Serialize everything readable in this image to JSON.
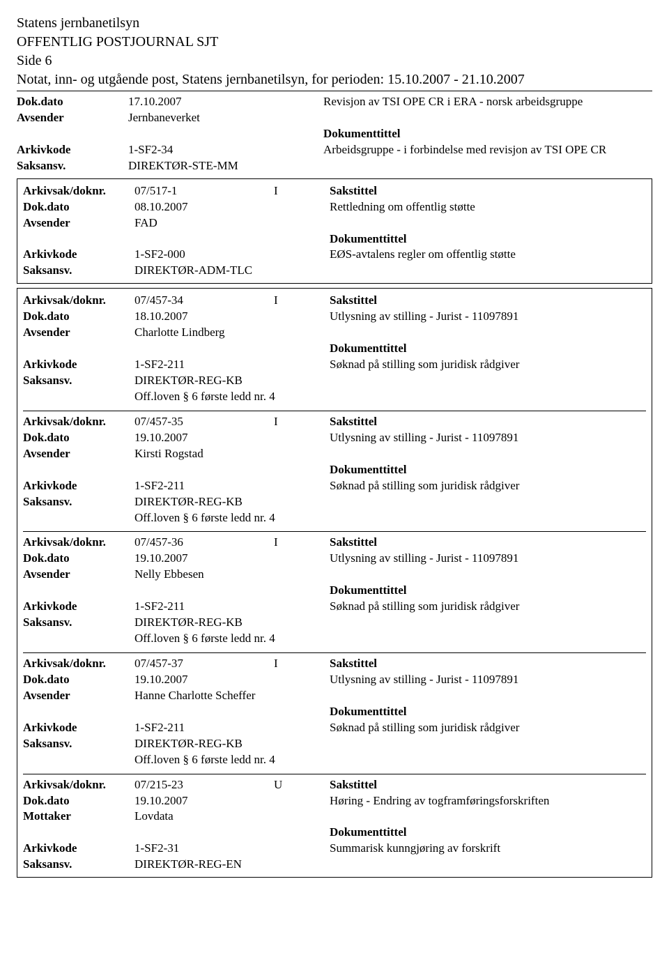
{
  "header": {
    "org": "Statens jernbanetilsyn",
    "title": "OFFENTLIG POSTJOURNAL SJT",
    "side": "Side 6",
    "notat": "Notat, inn- og utgående post, Statens jernbanetilsyn, for perioden: 15.10.2007 - 21.10.2007"
  },
  "labels": {
    "dokdato": "Dok.dato",
    "avsender": "Avsender",
    "mottaker": "Mottaker",
    "arkivkode": "Arkivkode",
    "saksansv": "Saksansv.",
    "arkivsak": "Arkivsak/doknr.",
    "sakstittel": "Sakstittel",
    "dokumenttittel": "Dokumenttittel"
  },
  "top_entry": {
    "dokdato": "17.10.2007",
    "avsender": "Jernbaneverket",
    "arkivkode": "1-SF2-34",
    "saksansv": "DIREKTØR-STE-MM",
    "revisjon": "Revisjon av TSI OPE CR i ERA - norsk arbeidsgruppe",
    "doktext": "Arbeidsgruppe - i forbindelse med revisjon av TSI OPE CR"
  },
  "box1": {
    "arkivsak": "07/517-1",
    "io": "I",
    "dokdato": "08.10.2007",
    "avsender": "FAD",
    "arkivkode": "1-SF2-000",
    "saksansv": "DIREKTØR-ADM-TLC",
    "sakstittel_text": "Rettledning om offentlig støtte",
    "doktext": "EØS-avtalens regler om offentlig støtte"
  },
  "box2": {
    "entries": [
      {
        "arkivsak": "07/457-34",
        "io": "I",
        "dokdato": "18.10.2007",
        "avsender": "Charlotte Lindberg",
        "arkivkode": "1-SF2-211",
        "saksansv": "DIREKTØR-REG-KB",
        "offloven": "Off.loven § 6 første ledd nr. 4",
        "sakstittel_text": "Utlysning av stilling - Jurist - 11097891",
        "doktext": "Søknad på stilling som juridisk rådgiver"
      },
      {
        "arkivsak": "07/457-35",
        "io": "I",
        "dokdato": "19.10.2007",
        "avsender": "Kirsti Rogstad",
        "arkivkode": "1-SF2-211",
        "saksansv": "DIREKTØR-REG-KB",
        "offloven": "Off.loven § 6 første ledd nr. 4",
        "sakstittel_text": "Utlysning av stilling - Jurist - 11097891",
        "doktext": "Søknad på stilling som juridisk rådgiver"
      },
      {
        "arkivsak": "07/457-36",
        "io": "I",
        "dokdato": "19.10.2007",
        "avsender": "Nelly Ebbesen",
        "arkivkode": "1-SF2-211",
        "saksansv": "DIREKTØR-REG-KB",
        "offloven": "Off.loven § 6 første ledd nr. 4",
        "sakstittel_text": "Utlysning av stilling - Jurist - 11097891",
        "doktext": "Søknad på stilling som juridisk rådgiver"
      },
      {
        "arkivsak": "07/457-37",
        "io": "I",
        "dokdato": "19.10.2007",
        "avsender": "Hanne Charlotte Scheffer",
        "arkivkode": "1-SF2-211",
        "saksansv": "DIREKTØR-REG-KB",
        "offloven": "Off.loven § 6 første ledd nr. 4",
        "sakstittel_text": "Utlysning av stilling - Jurist - 11097891",
        "doktext": "Søknad på stilling som juridisk rådgiver"
      },
      {
        "arkivsak": "07/215-23",
        "io": "U",
        "dokdato": "19.10.2007",
        "mottaker": "Lovdata",
        "arkivkode": "1-SF2-31",
        "saksansv": "DIREKTØR-REG-EN",
        "sakstittel_text": "Høring - Endring av togframføringsforskriften",
        "doktext": "Summarisk kunngjøring av forskrift"
      }
    ]
  }
}
